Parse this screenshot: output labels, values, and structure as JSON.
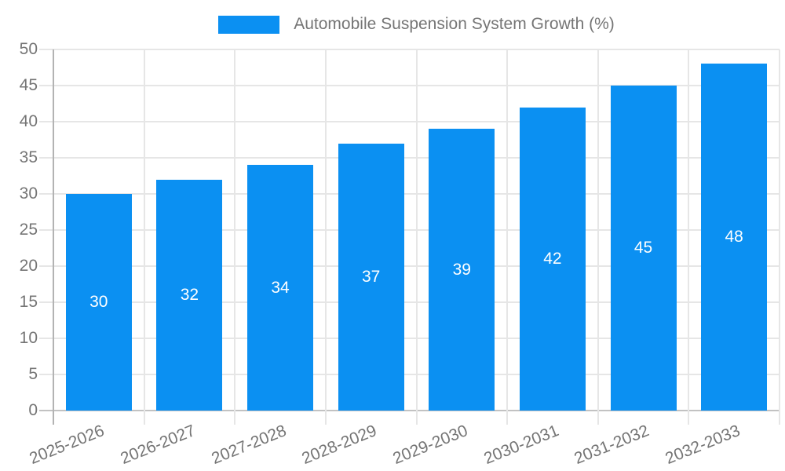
{
  "chart_data": {
    "type": "bar",
    "title": "Automobile Suspension System Growth (%)",
    "categories": [
      "2025-2026",
      "2026-2027",
      "2027-2028",
      "2028-2029",
      "2029-2030",
      "2030-2031",
      "2031-2032",
      "2032-2033"
    ],
    "values": [
      30,
      32,
      34,
      37,
      39,
      42,
      45,
      48
    ],
    "bar_value_labels": [
      "30",
      "32",
      "34",
      "37",
      "39",
      "42",
      "45",
      "48"
    ],
    "xlabel": "",
    "ylabel": "",
    "ylim": [
      0,
      50
    ],
    "ytick_step": 5,
    "yticks": [
      0,
      5,
      10,
      15,
      20,
      25,
      30,
      35,
      40,
      45,
      50
    ],
    "grid": true,
    "legend_position": "top-center",
    "bar_color": "#0b90f2",
    "bar_label_color": "#ffffff",
    "axis_text_color": "#757575",
    "grid_color": "#e6e6e6",
    "axis_line_color": "#b3b3b3",
    "baseline_color": "#c2c2c2",
    "background_color": "#ffffff"
  }
}
